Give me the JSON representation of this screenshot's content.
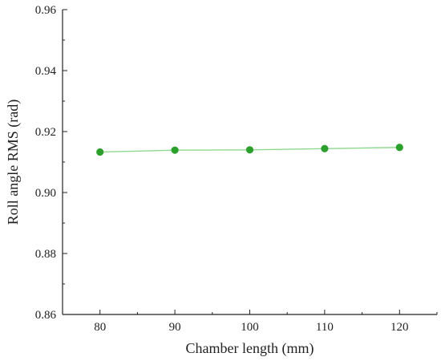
{
  "chart_data": {
    "type": "line",
    "title": "",
    "xlabel": "Chamber length (mm)",
    "ylabel": "Roll angle RMS (rad)",
    "xlim": [
      75,
      125
    ],
    "ylim": [
      0.86,
      0.96
    ],
    "x_ticks": [
      80,
      90,
      100,
      110,
      120
    ],
    "y_ticks": [
      0.86,
      0.88,
      0.9,
      0.92,
      0.94,
      0.96
    ],
    "x_tick_labels": [
      "80",
      "90",
      "100",
      "110",
      "120"
    ],
    "y_tick_labels": [
      "0.86",
      "0.88",
      "0.90",
      "0.92",
      "0.94",
      "0.96"
    ],
    "grid": false,
    "series": [
      {
        "color": "#2ca02c",
        "line_color": "#8fd88f",
        "x": [
          80,
          90,
          100,
          110,
          120
        ],
        "y": [
          0.9133,
          0.9139,
          0.914,
          0.9144,
          0.9148
        ]
      }
    ]
  }
}
